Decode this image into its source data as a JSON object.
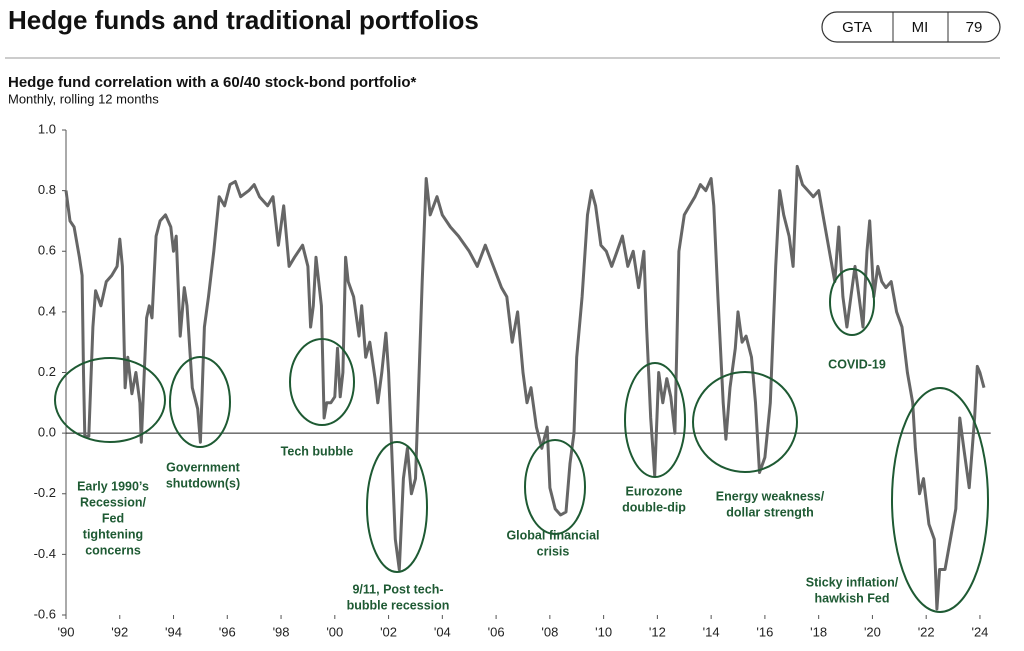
{
  "header": {
    "title": "Hedge funds and traditional portfolios",
    "badges": [
      "GTA",
      "MI",
      "79"
    ]
  },
  "chart_data": {
    "type": "line",
    "title": "Hedge fund correlation with a 60/40 stock-bond portfolio*",
    "subtitle": "Monthly, rolling 12 months",
    "color": "#666666",
    "xlim": [
      1990,
      2024.4
    ],
    "xticks": [
      {
        "value": 1990,
        "label": "'90"
      },
      {
        "value": 1992,
        "label": "'92"
      },
      {
        "value": 1994,
        "label": "'94"
      },
      {
        "value": 1996,
        "label": "'96"
      },
      {
        "value": 1998,
        "label": "'98"
      },
      {
        "value": 2000,
        "label": "'00"
      },
      {
        "value": 2002,
        "label": "'02"
      },
      {
        "value": 2004,
        "label": "'04"
      },
      {
        "value": 2006,
        "label": "'06"
      },
      {
        "value": 2008,
        "label": "'08"
      },
      {
        "value": 2010,
        "label": "'10"
      },
      {
        "value": 2012,
        "label": "'12"
      },
      {
        "value": 2014,
        "label": "'14"
      },
      {
        "value": 2016,
        "label": "'16"
      },
      {
        "value": 2018,
        "label": "'18"
      },
      {
        "value": 2020,
        "label": "'20"
      },
      {
        "value": 2022,
        "label": "'22"
      },
      {
        "value": 2024,
        "label": "'24"
      }
    ],
    "ylim": [
      -0.6,
      1.0
    ],
    "yticks": [
      -0.6,
      -0.4,
      -0.2,
      {
        "value": 0,
        "label": "0.0"
      },
      0.2,
      0.4,
      0.6,
      0.8,
      {
        "value": 1,
        "label": "1.0"
      }
    ],
    "x": [
      1990.0,
      1990.15,
      1990.3,
      1990.5,
      1990.6,
      1990.65,
      1990.7,
      1990.85,
      1991.0,
      1991.1,
      1991.3,
      1991.5,
      1991.7,
      1991.9,
      1992.0,
      1992.1,
      1992.2,
      1992.3,
      1992.45,
      1992.6,
      1992.75,
      1992.8,
      1993.0,
      1993.1,
      1993.2,
      1993.35,
      1993.5,
      1993.7,
      1993.9,
      1994.0,
      1994.1,
      1994.25,
      1994.4,
      1994.5,
      1994.7,
      1994.9,
      1995.0,
      1995.15,
      1995.3,
      1995.5,
      1995.7,
      1995.9,
      1996.1,
      1996.3,
      1996.5,
      1996.8,
      1997.0,
      1997.2,
      1997.5,
      1997.7,
      1997.9,
      1998.1,
      1998.3,
      1998.5,
      1998.8,
      1999.0,
      1999.1,
      1999.2,
      1999.3,
      1999.5,
      1999.6,
      1999.7,
      1999.85,
      2000.0,
      2000.1,
      2000.2,
      2000.3,
      2000.4,
      2000.5,
      2000.7,
      2000.9,
      2001.0,
      2001.15,
      2001.3,
      2001.5,
      2001.6,
      2001.75,
      2001.9,
      2002.0,
      2002.1,
      2002.25,
      2002.4,
      2002.55,
      2002.7,
      2002.85,
      2003.0,
      2003.1,
      2003.25,
      2003.4,
      2003.55,
      2003.8,
      2004.0,
      2004.3,
      2004.6,
      2005.0,
      2005.3,
      2005.6,
      2005.9,
      2006.2,
      2006.4,
      2006.6,
      2006.8,
      2007.0,
      2007.15,
      2007.3,
      2007.5,
      2007.7,
      2007.9,
      2008.0,
      2008.2,
      2008.4,
      2008.6,
      2008.75,
      2008.9,
      2009.0,
      2009.2,
      2009.4,
      2009.55,
      2009.7,
      2009.9,
      2010.1,
      2010.3,
      2010.5,
      2010.7,
      2010.9,
      2011.1,
      2011.3,
      2011.5,
      2011.6,
      2011.75,
      2011.9,
      2012.05,
      2012.2,
      2012.35,
      2012.5,
      2012.65,
      2012.8,
      2013.0,
      2013.2,
      2013.4,
      2013.6,
      2013.8,
      2014.0,
      2014.1,
      2014.25,
      2014.45,
      2014.55,
      2014.7,
      2014.9,
      2015.0,
      2015.15,
      2015.3,
      2015.5,
      2015.65,
      2015.8,
      2016.0,
      2016.2,
      2016.4,
      2016.55,
      2016.7,
      2016.9,
      2017.05,
      2017.2,
      2017.4,
      2017.6,
      2017.8,
      2018.0,
      2018.2,
      2018.4,
      2018.6,
      2018.75,
      2018.9,
      2019.05,
      2019.2,
      2019.35,
      2019.5,
      2019.65,
      2019.8,
      2019.9,
      2020.05,
      2020.2,
      2020.35,
      2020.5,
      2020.7,
      2020.9,
      2021.1,
      2021.3,
      2021.5,
      2021.6,
      2021.75,
      2021.9,
      2022.1,
      2022.3,
      2022.4,
      2022.5,
      2022.7,
      2022.9,
      2023.1,
      2023.25,
      2023.4,
      2023.6,
      2023.8,
      2023.9,
      2024.0,
      2024.15
    ],
    "values": [
      0.8,
      0.7,
      0.68,
      0.58,
      0.52,
      0.2,
      -0.01,
      -0.01,
      0.35,
      0.47,
      0.42,
      0.5,
      0.52,
      0.55,
      0.64,
      0.55,
      0.15,
      0.25,
      0.13,
      0.2,
      0.1,
      -0.03,
      0.38,
      0.42,
      0.38,
      0.65,
      0.7,
      0.72,
      0.68,
      0.6,
      0.65,
      0.32,
      0.48,
      0.42,
      0.15,
      0.08,
      -0.03,
      0.35,
      0.45,
      0.6,
      0.78,
      0.75,
      0.82,
      0.83,
      0.78,
      0.8,
      0.82,
      0.78,
      0.75,
      0.78,
      0.62,
      0.75,
      0.55,
      0.58,
      0.62,
      0.55,
      0.35,
      0.42,
      0.58,
      0.42,
      0.05,
      0.1,
      0.1,
      0.12,
      0.28,
      0.12,
      0.2,
      0.58,
      0.5,
      0.45,
      0.32,
      0.42,
      0.25,
      0.3,
      0.18,
      0.1,
      0.2,
      0.33,
      0.2,
      -0.02,
      -0.35,
      -0.45,
      -0.15,
      -0.05,
      -0.2,
      -0.15,
      0.1,
      0.5,
      0.84,
      0.72,
      0.78,
      0.72,
      0.68,
      0.65,
      0.6,
      0.55,
      0.62,
      0.55,
      0.48,
      0.45,
      0.3,
      0.4,
      0.2,
      0.1,
      0.15,
      0.02,
      -0.05,
      0.02,
      -0.18,
      -0.25,
      -0.27,
      -0.26,
      -0.1,
      0.0,
      0.25,
      0.45,
      0.72,
      0.8,
      0.75,
      0.62,
      0.6,
      0.55,
      0.6,
      0.65,
      0.55,
      0.6,
      0.48,
      0.6,
      0.35,
      0.05,
      -0.14,
      0.2,
      0.1,
      0.18,
      0.12,
      0.0,
      0.6,
      0.72,
      0.75,
      0.78,
      0.82,
      0.8,
      0.84,
      0.75,
      0.45,
      0.1,
      -0.02,
      0.15,
      0.28,
      0.4,
      0.3,
      0.32,
      0.25,
      0.1,
      -0.13,
      -0.08,
      0.1,
      0.55,
      0.8,
      0.72,
      0.65,
      0.55,
      0.88,
      0.82,
      0.8,
      0.78,
      0.8,
      0.7,
      0.6,
      0.5,
      0.68,
      0.45,
      0.35,
      0.45,
      0.55,
      0.45,
      0.35,
      0.6,
      0.7,
      0.45,
      0.55,
      0.5,
      0.48,
      0.5,
      0.4,
      0.35,
      0.2,
      0.1,
      -0.05,
      -0.2,
      -0.15,
      -0.3,
      -0.35,
      -0.58,
      -0.45,
      -0.45,
      -0.35,
      -0.25,
      0.05,
      -0.05,
      -0.18,
      0.05,
      0.22,
      0.2,
      0.15
    ],
    "annotations": [
      [
        "Early 1990’s",
        "Recession/",
        "Fed",
        "tightening",
        "concerns"
      ],
      [
        "Government",
        "shutdown(s)"
      ],
      [
        "Tech bubble"
      ],
      [
        "9/11, Post tech-",
        "bubble recession"
      ],
      [
        "Global financial",
        "crisis"
      ],
      [
        "Eurozone",
        "double-dip"
      ],
      [
        "Energy weakness/",
        "dollar strength"
      ],
      [
        "COVID-19"
      ],
      [
        "Sticky inflation/",
        "hawkish Fed"
      ]
    ]
  }
}
